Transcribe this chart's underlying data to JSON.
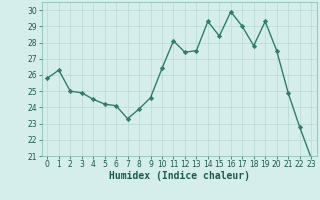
{
  "x": [
    0,
    1,
    2,
    3,
    4,
    5,
    6,
    7,
    8,
    9,
    10,
    11,
    12,
    13,
    14,
    15,
    16,
    17,
    18,
    19,
    20,
    21,
    22,
    23
  ],
  "y": [
    25.8,
    26.3,
    25.0,
    24.9,
    24.5,
    24.2,
    24.1,
    23.3,
    23.9,
    24.6,
    26.4,
    28.1,
    27.4,
    27.5,
    29.3,
    28.4,
    29.9,
    29.0,
    27.8,
    29.3,
    27.5,
    24.9,
    22.8,
    20.9
  ],
  "line_color": "#2e7d6e",
  "marker": "D",
  "marker_size": 2.2,
  "bg_color": "#d6eeeb",
  "grid_color": "#b8d8d4",
  "xlabel": "Humidex (Indice chaleur)",
  "xlim": [
    -0.5,
    23.5
  ],
  "ylim": [
    21,
    30.5
  ],
  "yticks": [
    21,
    22,
    23,
    24,
    25,
    26,
    27,
    28,
    29,
    30
  ],
  "xticks": [
    0,
    1,
    2,
    3,
    4,
    5,
    6,
    7,
    8,
    9,
    10,
    11,
    12,
    13,
    14,
    15,
    16,
    17,
    18,
    19,
    20,
    21,
    22,
    23
  ],
  "tick_fontsize": 5.5,
  "label_fontsize": 7.0,
  "line_width": 1.0
}
